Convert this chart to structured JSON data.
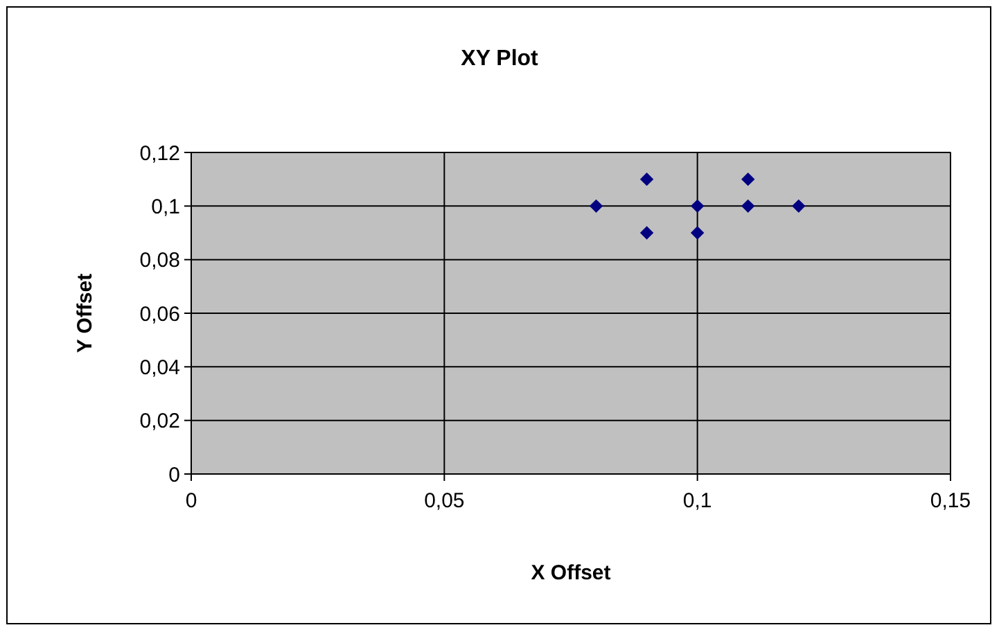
{
  "chart_data": {
    "type": "scatter",
    "title": "XY Plot",
    "xlabel": "X Offset",
    "ylabel": "Y Offset",
    "x": [
      0.08,
      0.09,
      0.09,
      0.1,
      0.1,
      0.11,
      0.11,
      0.12
    ],
    "series": [
      {
        "color": "#000080",
        "values": [
          0.1,
          0.11,
          0.09,
          0.1,
          0.09,
          0.11,
          0.1,
          0.1
        ]
      }
    ],
    "xlim": [
      0,
      0.15
    ],
    "ylim": [
      0,
      0.12
    ],
    "xticks": [
      0,
      {
        "value": 0.05,
        "label": "0,05"
      },
      {
        "value": 0.1,
        "label": "0,1"
      },
      {
        "value": 0.15,
        "label": "0,15"
      }
    ],
    "yticks": [
      0,
      {
        "value": 0.02,
        "label": "0,02"
      },
      {
        "value": 0.04,
        "label": "0,04"
      },
      {
        "value": 0.06,
        "label": "0,06"
      },
      {
        "value": 0.08,
        "label": "0,08"
      },
      {
        "value": 0.1,
        "label": "0,1"
      },
      {
        "value": 0.12,
        "label": "0,12"
      }
    ],
    "grid": true,
    "marker": "diamond"
  }
}
